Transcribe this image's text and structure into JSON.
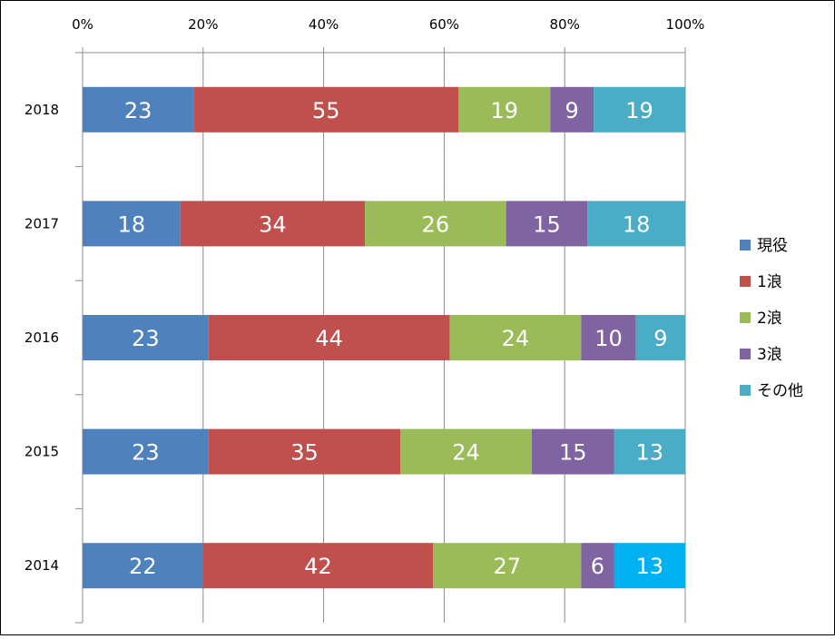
{
  "chart_data": {
    "type": "bar",
    "orientation": "horizontal",
    "stacked": "percent",
    "categories": [
      "2018",
      "2017",
      "2016",
      "2015",
      "2014"
    ],
    "series": [
      {
        "name": "現役",
        "color": "#4F81BD",
        "values": [
          23,
          18,
          23,
          23,
          22
        ]
      },
      {
        "name": "1浪",
        "color": "#C0504D",
        "values": [
          55,
          34,
          44,
          35,
          42
        ]
      },
      {
        "name": "2浪",
        "color": "#9BBB59",
        "values": [
          19,
          26,
          24,
          24,
          27
        ]
      },
      {
        "name": "3浪",
        "color": "#8064A2",
        "values": [
          9,
          15,
          10,
          15,
          6
        ]
      },
      {
        "name": "その他",
        "colors": [
          "#4BACC6",
          "#4BACC6",
          "#4BACC6",
          "#4BACC6",
          "#00B0F0"
        ],
        "values": [
          19,
          18,
          9,
          13,
          13
        ]
      }
    ],
    "x_ticks": [
      "0%",
      "20%",
      "40%",
      "60%",
      "80%",
      "100%"
    ],
    "xlim": [
      0,
      100
    ],
    "grid": "vertical",
    "x_axis_position": "top",
    "legend_position": "right"
  }
}
